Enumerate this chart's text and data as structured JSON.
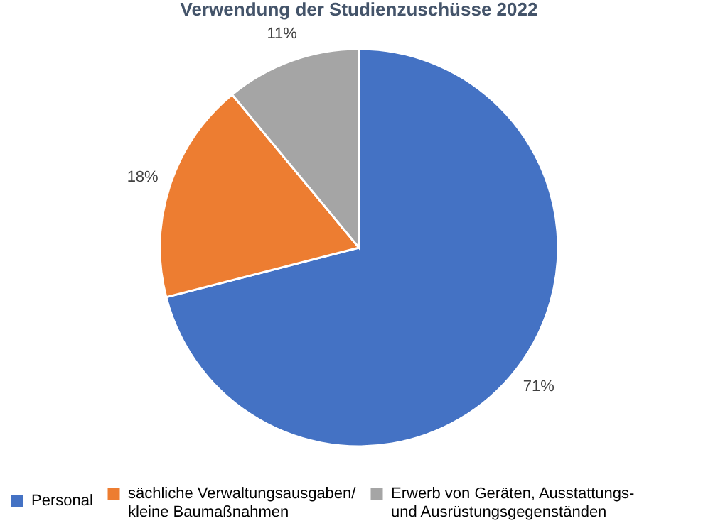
{
  "chart_data": {
    "type": "pie",
    "title": "Verwendung der Studienzuschüsse 2022",
    "categories": [
      "Personal",
      "sächliche Verwaltungsausgaben/ kleine Baumaßnahmen",
      "Erwerb von Geräten, Ausstattungs- und Ausrüstungsgegenständen"
    ],
    "values": [
      71,
      18,
      11
    ],
    "colors": [
      "#4472c4",
      "#ed7d31",
      "#a5a5a5"
    ],
    "value_labels": [
      "71%",
      "18%",
      "11%"
    ],
    "legend": "bottom"
  }
}
